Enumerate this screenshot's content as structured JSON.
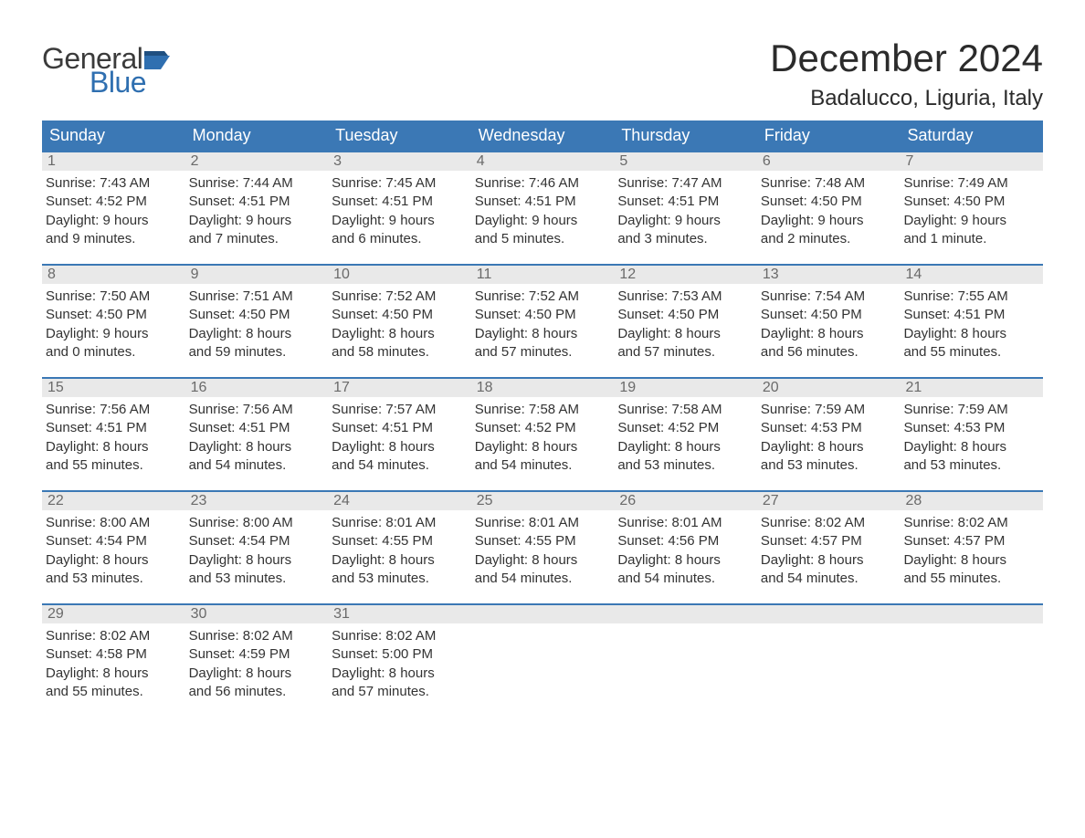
{
  "brand": {
    "word1": "General",
    "word2": "Blue",
    "flag_color": "#2f6fb0",
    "word1_color": "#3b3b3b",
    "word2_color": "#2f6fb0"
  },
  "title": "December 2024",
  "location": "Badalucco, Liguria, Italy",
  "colors": {
    "header_bg": "#3b78b5",
    "header_text": "#ffffff",
    "daynum_bg": "#e9e9e9",
    "daynum_text": "#6a6a6a",
    "body_text": "#333333",
    "week_border": "#3b78b5",
    "page_bg": "#ffffff"
  },
  "weekdays": [
    "Sunday",
    "Monday",
    "Tuesday",
    "Wednesday",
    "Thursday",
    "Friday",
    "Saturday"
  ],
  "weeks": [
    [
      {
        "num": "1",
        "sunrise": "Sunrise: 7:43 AM",
        "sunset": "Sunset: 4:52 PM",
        "dl1": "Daylight: 9 hours",
        "dl2": "and 9 minutes."
      },
      {
        "num": "2",
        "sunrise": "Sunrise: 7:44 AM",
        "sunset": "Sunset: 4:51 PM",
        "dl1": "Daylight: 9 hours",
        "dl2": "and 7 minutes."
      },
      {
        "num": "3",
        "sunrise": "Sunrise: 7:45 AM",
        "sunset": "Sunset: 4:51 PM",
        "dl1": "Daylight: 9 hours",
        "dl2": "and 6 minutes."
      },
      {
        "num": "4",
        "sunrise": "Sunrise: 7:46 AM",
        "sunset": "Sunset: 4:51 PM",
        "dl1": "Daylight: 9 hours",
        "dl2": "and 5 minutes."
      },
      {
        "num": "5",
        "sunrise": "Sunrise: 7:47 AM",
        "sunset": "Sunset: 4:51 PM",
        "dl1": "Daylight: 9 hours",
        "dl2": "and 3 minutes."
      },
      {
        "num": "6",
        "sunrise": "Sunrise: 7:48 AM",
        "sunset": "Sunset: 4:50 PM",
        "dl1": "Daylight: 9 hours",
        "dl2": "and 2 minutes."
      },
      {
        "num": "7",
        "sunrise": "Sunrise: 7:49 AM",
        "sunset": "Sunset: 4:50 PM",
        "dl1": "Daylight: 9 hours",
        "dl2": "and 1 minute."
      }
    ],
    [
      {
        "num": "8",
        "sunrise": "Sunrise: 7:50 AM",
        "sunset": "Sunset: 4:50 PM",
        "dl1": "Daylight: 9 hours",
        "dl2": "and 0 minutes."
      },
      {
        "num": "9",
        "sunrise": "Sunrise: 7:51 AM",
        "sunset": "Sunset: 4:50 PM",
        "dl1": "Daylight: 8 hours",
        "dl2": "and 59 minutes."
      },
      {
        "num": "10",
        "sunrise": "Sunrise: 7:52 AM",
        "sunset": "Sunset: 4:50 PM",
        "dl1": "Daylight: 8 hours",
        "dl2": "and 58 minutes."
      },
      {
        "num": "11",
        "sunrise": "Sunrise: 7:52 AM",
        "sunset": "Sunset: 4:50 PM",
        "dl1": "Daylight: 8 hours",
        "dl2": "and 57 minutes."
      },
      {
        "num": "12",
        "sunrise": "Sunrise: 7:53 AM",
        "sunset": "Sunset: 4:50 PM",
        "dl1": "Daylight: 8 hours",
        "dl2": "and 57 minutes."
      },
      {
        "num": "13",
        "sunrise": "Sunrise: 7:54 AM",
        "sunset": "Sunset: 4:50 PM",
        "dl1": "Daylight: 8 hours",
        "dl2": "and 56 minutes."
      },
      {
        "num": "14",
        "sunrise": "Sunrise: 7:55 AM",
        "sunset": "Sunset: 4:51 PM",
        "dl1": "Daylight: 8 hours",
        "dl2": "and 55 minutes."
      }
    ],
    [
      {
        "num": "15",
        "sunrise": "Sunrise: 7:56 AM",
        "sunset": "Sunset: 4:51 PM",
        "dl1": "Daylight: 8 hours",
        "dl2": "and 55 minutes."
      },
      {
        "num": "16",
        "sunrise": "Sunrise: 7:56 AM",
        "sunset": "Sunset: 4:51 PM",
        "dl1": "Daylight: 8 hours",
        "dl2": "and 54 minutes."
      },
      {
        "num": "17",
        "sunrise": "Sunrise: 7:57 AM",
        "sunset": "Sunset: 4:51 PM",
        "dl1": "Daylight: 8 hours",
        "dl2": "and 54 minutes."
      },
      {
        "num": "18",
        "sunrise": "Sunrise: 7:58 AM",
        "sunset": "Sunset: 4:52 PM",
        "dl1": "Daylight: 8 hours",
        "dl2": "and 54 minutes."
      },
      {
        "num": "19",
        "sunrise": "Sunrise: 7:58 AM",
        "sunset": "Sunset: 4:52 PM",
        "dl1": "Daylight: 8 hours",
        "dl2": "and 53 minutes."
      },
      {
        "num": "20",
        "sunrise": "Sunrise: 7:59 AM",
        "sunset": "Sunset: 4:53 PM",
        "dl1": "Daylight: 8 hours",
        "dl2": "and 53 minutes."
      },
      {
        "num": "21",
        "sunrise": "Sunrise: 7:59 AM",
        "sunset": "Sunset: 4:53 PM",
        "dl1": "Daylight: 8 hours",
        "dl2": "and 53 minutes."
      }
    ],
    [
      {
        "num": "22",
        "sunrise": "Sunrise: 8:00 AM",
        "sunset": "Sunset: 4:54 PM",
        "dl1": "Daylight: 8 hours",
        "dl2": "and 53 minutes."
      },
      {
        "num": "23",
        "sunrise": "Sunrise: 8:00 AM",
        "sunset": "Sunset: 4:54 PM",
        "dl1": "Daylight: 8 hours",
        "dl2": "and 53 minutes."
      },
      {
        "num": "24",
        "sunrise": "Sunrise: 8:01 AM",
        "sunset": "Sunset: 4:55 PM",
        "dl1": "Daylight: 8 hours",
        "dl2": "and 53 minutes."
      },
      {
        "num": "25",
        "sunrise": "Sunrise: 8:01 AM",
        "sunset": "Sunset: 4:55 PM",
        "dl1": "Daylight: 8 hours",
        "dl2": "and 54 minutes."
      },
      {
        "num": "26",
        "sunrise": "Sunrise: 8:01 AM",
        "sunset": "Sunset: 4:56 PM",
        "dl1": "Daylight: 8 hours",
        "dl2": "and 54 minutes."
      },
      {
        "num": "27",
        "sunrise": "Sunrise: 8:02 AM",
        "sunset": "Sunset: 4:57 PM",
        "dl1": "Daylight: 8 hours",
        "dl2": "and 54 minutes."
      },
      {
        "num": "28",
        "sunrise": "Sunrise: 8:02 AM",
        "sunset": "Sunset: 4:57 PM",
        "dl1": "Daylight: 8 hours",
        "dl2": "and 55 minutes."
      }
    ],
    [
      {
        "num": "29",
        "sunrise": "Sunrise: 8:02 AM",
        "sunset": "Sunset: 4:58 PM",
        "dl1": "Daylight: 8 hours",
        "dl2": "and 55 minutes."
      },
      {
        "num": "30",
        "sunrise": "Sunrise: 8:02 AM",
        "sunset": "Sunset: 4:59 PM",
        "dl1": "Daylight: 8 hours",
        "dl2": "and 56 minutes."
      },
      {
        "num": "31",
        "sunrise": "Sunrise: 8:02 AM",
        "sunset": "Sunset: 5:00 PM",
        "dl1": "Daylight: 8 hours",
        "dl2": "and 57 minutes."
      },
      {
        "empty": true
      },
      {
        "empty": true
      },
      {
        "empty": true
      },
      {
        "empty": true
      }
    ]
  ]
}
